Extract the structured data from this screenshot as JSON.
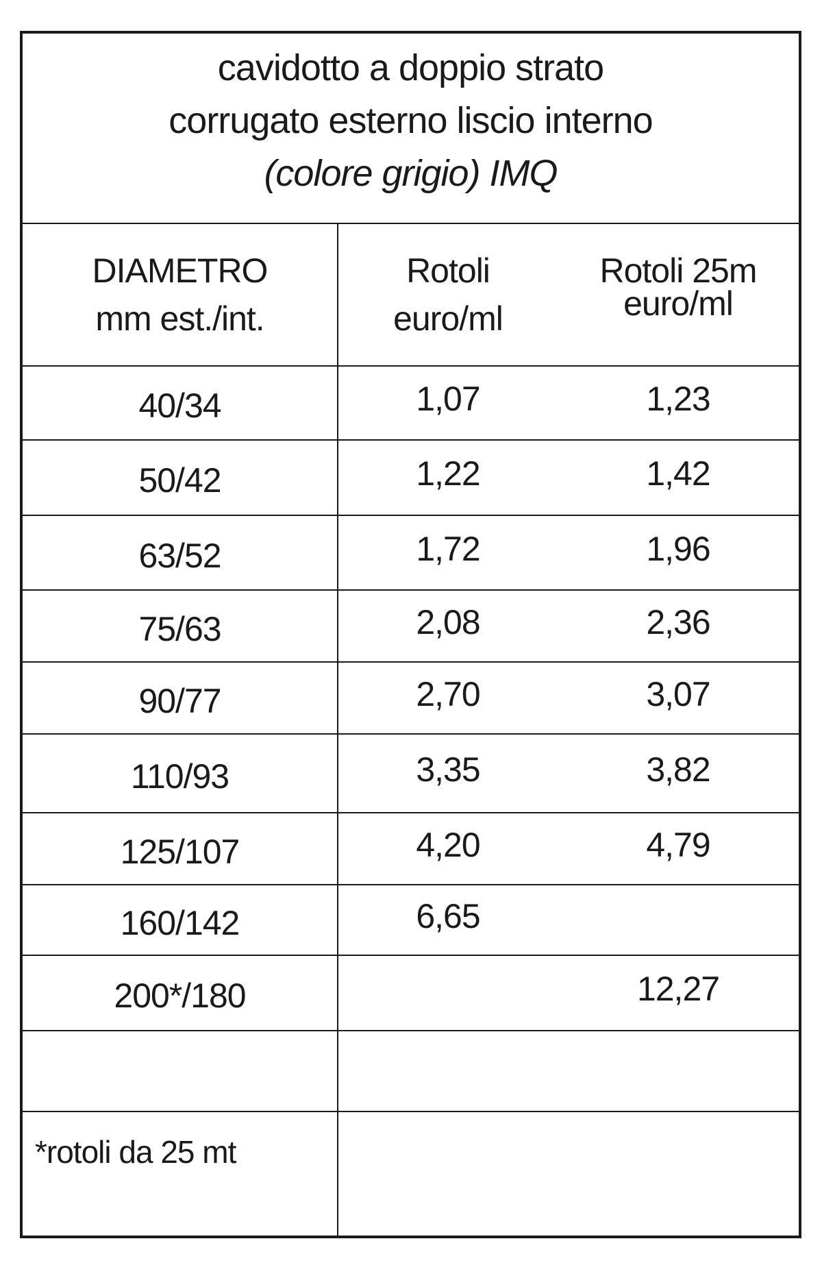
{
  "title": {
    "line1": "cavidotto a doppio strato",
    "line2": "corrugato esterno liscio interno",
    "line3": "(colore grigio) IMQ"
  },
  "headers": {
    "diametro": [
      "DIAMETRO",
      "mm est./int."
    ],
    "rotoli": [
      "Rotoli",
      "euro/ml"
    ],
    "rotoli25": [
      "Rotoli 25m",
      "euro/ml"
    ]
  },
  "rows": [
    {
      "diametro": "40/34",
      "rotoli": "1,07",
      "rotoli25": "1,23"
    },
    {
      "diametro": "50/42",
      "rotoli": "1,22",
      "rotoli25": "1,42"
    },
    {
      "diametro": "63/52",
      "rotoli": "1,72",
      "rotoli25": "1,96"
    },
    {
      "diametro": "75/63",
      "rotoli": "2,08",
      "rotoli25": "2,36"
    },
    {
      "diametro": "90/77",
      "rotoli": "2,70",
      "rotoli25": "3,07"
    },
    {
      "diametro": "110/93",
      "rotoli": "3,35",
      "rotoli25": "3,82"
    },
    {
      "diametro": "125/107",
      "rotoli": "4,20",
      "rotoli25": "4,79"
    },
    {
      "diametro": "160/142",
      "rotoli": "6,65",
      "rotoli25": ""
    },
    {
      "diametro": "200*/180",
      "rotoli": "",
      "rotoli25": "12,27"
    }
  ],
  "note": "*rotoli da 25 mt"
}
